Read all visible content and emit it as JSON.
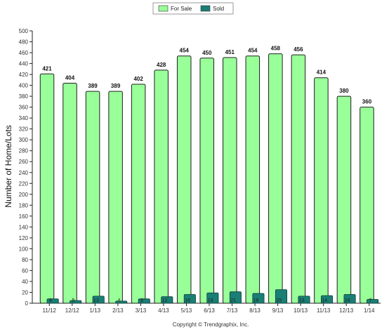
{
  "chart_data": {
    "type": "bar",
    "ylabel": "Number of Home/Lots",
    "ylim": [
      0,
      500
    ],
    "ytick_step": 20,
    "grid": false,
    "legend_position": "top-center",
    "credit": "Copyright © Trendgraphix, Inc.",
    "categories": [
      "11/12",
      "12/12",
      "1/13",
      "2/13",
      "3/13",
      "4/13",
      "5/13",
      "6/13",
      "7/13",
      "8/13",
      "9/13",
      "10/13",
      "11/13",
      "12/13",
      "1/14"
    ],
    "series": [
      {
        "name": "For Sale",
        "color": "#99ff99",
        "values": [
          421,
          404,
          389,
          389,
          402,
          428,
          454,
          450,
          451,
          454,
          458,
          456,
          414,
          380,
          360
        ]
      },
      {
        "name": "Sold",
        "color": "#1a7f74",
        "values": [
          8,
          5,
          13,
          4,
          8,
          12,
          16,
          19,
          21,
          18,
          25,
          13,
          14,
          16,
          7
        ]
      }
    ]
  }
}
